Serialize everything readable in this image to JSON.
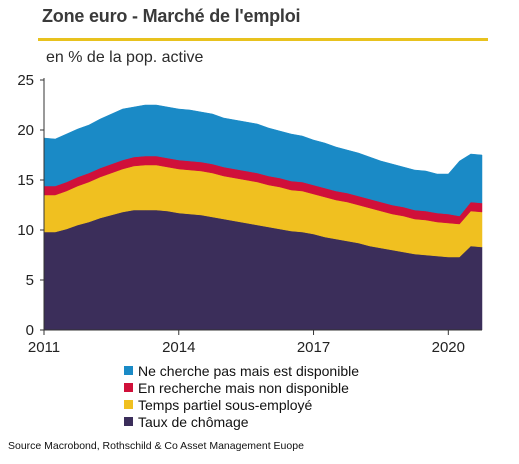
{
  "header": {
    "title": "Zone euro - Marché de l'emploi",
    "subtitle": "en % de la pop. active"
  },
  "source": "Source Macrobond, Rothschild & Co Asset Management Euope",
  "colors": {
    "inactive_available": "#1a8ac6",
    "searching_unavailable": "#d0103a",
    "part_time": "#f0c020",
    "unemployment": "#3b2e5a",
    "title_rule": "#e8c21e"
  },
  "chart_data": {
    "type": "area",
    "stacked": true,
    "title": "",
    "xlabel": "",
    "ylabel": "",
    "ylim": [
      0,
      25
    ],
    "y_ticks": [
      "0",
      "5",
      "10",
      "15",
      "20",
      "25"
    ],
    "x_ticks": [
      {
        "label": "2011",
        "value": 2011
      },
      {
        "label": "2014",
        "value": 2014
      },
      {
        "label": "2017",
        "value": 2017
      },
      {
        "label": "2020",
        "value": 2020
      }
    ],
    "xlim": [
      2011,
      2020.75
    ],
    "x": [
      2011.0,
      2011.25,
      2011.5,
      2011.75,
      2012.0,
      2012.25,
      2012.5,
      2012.75,
      2013.0,
      2013.25,
      2013.5,
      2013.75,
      2014.0,
      2014.25,
      2014.5,
      2014.75,
      2015.0,
      2015.25,
      2015.5,
      2015.75,
      2016.0,
      2016.25,
      2016.5,
      2016.75,
      2017.0,
      2017.25,
      2017.5,
      2017.75,
      2018.0,
      2018.25,
      2018.5,
      2018.75,
      2019.0,
      2019.25,
      2019.5,
      2019.75,
      2020.0,
      2020.25,
      2020.5,
      2020.75
    ],
    "legend_position": "bottom",
    "grid": false,
    "series": [
      {
        "name": "Taux de chômage",
        "color_key": "unemployment",
        "values": [
          9.8,
          9.8,
          10.1,
          10.5,
          10.8,
          11.2,
          11.5,
          11.8,
          12.0,
          12.0,
          12.0,
          11.9,
          11.7,
          11.6,
          11.5,
          11.3,
          11.1,
          10.9,
          10.7,
          10.5,
          10.3,
          10.1,
          9.9,
          9.8,
          9.6,
          9.3,
          9.1,
          8.9,
          8.7,
          8.4,
          8.2,
          8.0,
          7.8,
          7.6,
          7.5,
          7.4,
          7.3,
          7.3,
          8.4,
          8.3
        ]
      },
      {
        "name": "Temps partiel sous-employé",
        "color_key": "part_time",
        "values": [
          3.7,
          3.7,
          3.8,
          3.9,
          4.0,
          4.1,
          4.2,
          4.3,
          4.4,
          4.5,
          4.5,
          4.4,
          4.4,
          4.4,
          4.4,
          4.4,
          4.3,
          4.3,
          4.3,
          4.3,
          4.2,
          4.2,
          4.1,
          4.1,
          4.0,
          4.0,
          3.9,
          3.9,
          3.8,
          3.8,
          3.7,
          3.6,
          3.6,
          3.5,
          3.5,
          3.4,
          3.4,
          3.3,
          3.5,
          3.5
        ]
      },
      {
        "name": "En recherche mais non disponible",
        "color_key": "searching_unavailable",
        "values": [
          0.9,
          0.9,
          0.9,
          0.9,
          0.9,
          0.9,
          0.9,
          0.9,
          0.9,
          0.9,
          0.9,
          0.9,
          0.9,
          0.9,
          0.9,
          0.9,
          0.9,
          0.9,
          0.9,
          0.9,
          0.9,
          0.9,
          0.9,
          0.9,
          0.9,
          0.9,
          0.9,
          0.9,
          0.9,
          0.9,
          0.9,
          0.9,
          0.9,
          0.9,
          0.9,
          0.9,
          0.9,
          0.8,
          0.9,
          0.9
        ]
      },
      {
        "name": "Ne cherche pas mais est disponible",
        "color_key": "inactive_available",
        "values": [
          4.8,
          4.7,
          4.8,
          4.8,
          4.8,
          4.9,
          5.0,
          5.1,
          5.0,
          5.1,
          5.1,
          5.1,
          5.1,
          5.1,
          5.0,
          5.0,
          4.9,
          4.9,
          4.9,
          4.9,
          4.8,
          4.7,
          4.7,
          4.6,
          4.5,
          4.5,
          4.4,
          4.3,
          4.3,
          4.2,
          4.1,
          4.1,
          4.0,
          4.0,
          4.0,
          3.9,
          4.0,
          5.5,
          4.8,
          4.8
        ]
      }
    ]
  }
}
